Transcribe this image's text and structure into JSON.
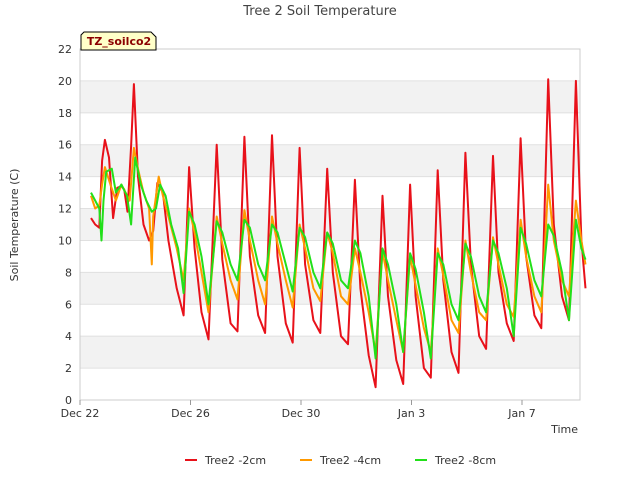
{
  "chart_data": {
    "type": "line",
    "title": "Tree 2 Soil Temperature",
    "xlabel": "Time",
    "ylabel": "Soil Temperature (C)",
    "station_label": "TZ_soilco2",
    "x_tick_labels": [
      "Dec 22",
      "Dec 26",
      "Dec 30",
      "Jan 3",
      "Jan 7"
    ],
    "x_tick_days": [
      0,
      4,
      8,
      12,
      16
    ],
    "xlim_days": [
      0,
      18.1
    ],
    "ylim": [
      0,
      22
    ],
    "y_ticks": [
      0,
      2,
      4,
      6,
      8,
      10,
      12,
      14,
      16,
      18,
      20,
      22
    ],
    "grid": "horizontal bands",
    "legend_position": "bottom",
    "series": [
      {
        "name": "Tree2 -2cm",
        "color": "#e8111a",
        "points": [
          [
            0.4,
            11.4
          ],
          [
            0.55,
            11.0
          ],
          [
            0.7,
            10.8
          ],
          [
            0.8,
            15.0
          ],
          [
            0.9,
            16.3
          ],
          [
            1.05,
            15.2
          ],
          [
            1.2,
            11.4
          ],
          [
            1.35,
            13.3
          ],
          [
            1.5,
            13.4
          ],
          [
            1.6,
            13.2
          ],
          [
            1.72,
            11.8
          ],
          [
            1.85,
            15.9
          ],
          [
            1.95,
            19.8
          ],
          [
            2.1,
            14.0
          ],
          [
            2.3,
            11.0
          ],
          [
            2.5,
            10.0
          ],
          [
            2.65,
            10.6
          ],
          [
            2.8,
            13.6
          ],
          [
            3.0,
            13.0
          ],
          [
            3.2,
            10.0
          ],
          [
            3.5,
            7.0
          ],
          [
            3.75,
            5.3
          ],
          [
            3.95,
            14.6
          ],
          [
            4.15,
            9.5
          ],
          [
            4.4,
            5.5
          ],
          [
            4.65,
            3.8
          ],
          [
            4.95,
            16.0
          ],
          [
            5.15,
            8.8
          ],
          [
            5.45,
            4.8
          ],
          [
            5.7,
            4.3
          ],
          [
            5.95,
            16.5
          ],
          [
            6.15,
            9.0
          ],
          [
            6.45,
            5.3
          ],
          [
            6.7,
            4.2
          ],
          [
            6.95,
            16.6
          ],
          [
            7.15,
            9.0
          ],
          [
            7.45,
            4.8
          ],
          [
            7.7,
            3.6
          ],
          [
            7.95,
            15.8
          ],
          [
            8.15,
            8.5
          ],
          [
            8.45,
            5.0
          ],
          [
            8.7,
            4.2
          ],
          [
            8.95,
            14.5
          ],
          [
            9.15,
            8.0
          ],
          [
            9.45,
            4.0
          ],
          [
            9.7,
            3.5
          ],
          [
            9.95,
            13.8
          ],
          [
            10.15,
            7.0
          ],
          [
            10.45,
            2.8
          ],
          [
            10.7,
            0.8
          ],
          [
            10.95,
            12.8
          ],
          [
            11.15,
            6.5
          ],
          [
            11.45,
            2.5
          ],
          [
            11.7,
            1.0
          ],
          [
            11.95,
            13.5
          ],
          [
            12.15,
            6.5
          ],
          [
            12.45,
            2.0
          ],
          [
            12.7,
            1.4
          ],
          [
            12.95,
            14.4
          ],
          [
            13.15,
            7.5
          ],
          [
            13.45,
            3.0
          ],
          [
            13.7,
            1.7
          ],
          [
            13.95,
            15.5
          ],
          [
            14.15,
            8.5
          ],
          [
            14.45,
            4.0
          ],
          [
            14.7,
            3.2
          ],
          [
            14.95,
            15.3
          ],
          [
            15.15,
            8.0
          ],
          [
            15.45,
            4.8
          ],
          [
            15.7,
            3.7
          ],
          [
            15.95,
            16.4
          ],
          [
            16.15,
            9.0
          ],
          [
            16.45,
            5.3
          ],
          [
            16.7,
            4.5
          ],
          [
            16.95,
            20.1
          ],
          [
            17.15,
            11.0
          ],
          [
            17.45,
            6.5
          ],
          [
            17.7,
            5.0
          ],
          [
            17.95,
            20.0
          ],
          [
            18.15,
            10.0
          ],
          [
            18.3,
            7.0
          ]
        ]
      },
      {
        "name": "Tree2 -4cm",
        "color": "#ff9900",
        "points": [
          [
            0.4,
            12.8
          ],
          [
            0.55,
            12.0
          ],
          [
            0.7,
            12.2
          ],
          [
            0.8,
            13.5
          ],
          [
            0.9,
            14.6
          ],
          [
            1.1,
            13.5
          ],
          [
            1.3,
            12.5
          ],
          [
            1.5,
            13.5
          ],
          [
            1.65,
            13.0
          ],
          [
            1.8,
            12.5
          ],
          [
            1.95,
            15.8
          ],
          [
            2.1,
            14.5
          ],
          [
            2.3,
            13.0
          ],
          [
            2.5,
            12.0
          ],
          [
            2.6,
            8.5
          ],
          [
            2.65,
            11.5
          ],
          [
            2.85,
            14.0
          ],
          [
            3.0,
            12.8
          ],
          [
            3.2,
            11.5
          ],
          [
            3.5,
            9.5
          ],
          [
            3.75,
            7.5
          ],
          [
            3.95,
            12.0
          ],
          [
            4.15,
            10.5
          ],
          [
            4.4,
            8.0
          ],
          [
            4.65,
            5.5
          ],
          [
            4.95,
            11.5
          ],
          [
            5.15,
            9.8
          ],
          [
            5.45,
            7.5
          ],
          [
            5.7,
            6.3
          ],
          [
            5.95,
            11.9
          ],
          [
            6.15,
            10.0
          ],
          [
            6.45,
            7.5
          ],
          [
            6.7,
            6.0
          ],
          [
            6.95,
            11.5
          ],
          [
            7.15,
            9.8
          ],
          [
            7.45,
            7.5
          ],
          [
            7.7,
            5.8
          ],
          [
            7.95,
            11.0
          ],
          [
            8.15,
            9.5
          ],
          [
            8.45,
            7.0
          ],
          [
            8.7,
            6.2
          ],
          [
            8.95,
            10.5
          ],
          [
            9.15,
            9.2
          ],
          [
            9.45,
            6.5
          ],
          [
            9.7,
            6.0
          ],
          [
            9.95,
            9.5
          ],
          [
            10.15,
            8.0
          ],
          [
            10.45,
            5.5
          ],
          [
            10.7,
            3.0
          ],
          [
            10.95,
            9.3
          ],
          [
            11.15,
            7.5
          ],
          [
            11.45,
            5.0
          ],
          [
            11.7,
            3.0
          ],
          [
            11.95,
            9.0
          ],
          [
            12.15,
            7.2
          ],
          [
            12.45,
            4.5
          ],
          [
            12.7,
            3.0
          ],
          [
            12.95,
            9.5
          ],
          [
            13.15,
            7.8
          ],
          [
            13.45,
            5.0
          ],
          [
            13.7,
            4.2
          ],
          [
            13.95,
            10.0
          ],
          [
            14.15,
            8.0
          ],
          [
            14.45,
            5.5
          ],
          [
            14.7,
            5.0
          ],
          [
            14.95,
            10.2
          ],
          [
            15.15,
            8.5
          ],
          [
            15.45,
            6.0
          ],
          [
            15.7,
            5.2
          ],
          [
            15.95,
            11.3
          ],
          [
            16.15,
            9.0
          ],
          [
            16.45,
            6.5
          ],
          [
            16.7,
            5.5
          ],
          [
            16.95,
            13.5
          ],
          [
            17.15,
            10.0
          ],
          [
            17.45,
            7.5
          ],
          [
            17.7,
            6.5
          ],
          [
            17.95,
            12.5
          ],
          [
            18.15,
            10.0
          ],
          [
            18.3,
            8.5
          ]
        ]
      },
      {
        "name": "Tree2 -8cm",
        "color": "#22e01a",
        "points": [
          [
            0.4,
            13.0
          ],
          [
            0.55,
            12.5
          ],
          [
            0.7,
            12.0
          ],
          [
            0.78,
            10.0
          ],
          [
            0.85,
            12.5
          ],
          [
            0.95,
            14.3
          ],
          [
            1.15,
            14.5
          ],
          [
            1.3,
            13.0
          ],
          [
            1.5,
            13.5
          ],
          [
            1.7,
            12.8
          ],
          [
            1.85,
            11.0
          ],
          [
            2.0,
            15.2
          ],
          [
            2.2,
            13.5
          ],
          [
            2.4,
            12.5
          ],
          [
            2.6,
            11.8
          ],
          [
            2.75,
            12.0
          ],
          [
            2.9,
            13.5
          ],
          [
            3.1,
            12.8
          ],
          [
            3.3,
            11.0
          ],
          [
            3.55,
            9.5
          ],
          [
            3.75,
            6.7
          ],
          [
            3.95,
            11.8
          ],
          [
            4.15,
            11.0
          ],
          [
            4.4,
            9.0
          ],
          [
            4.65,
            6.0
          ],
          [
            4.95,
            11.2
          ],
          [
            5.15,
            10.5
          ],
          [
            5.45,
            8.5
          ],
          [
            5.7,
            7.5
          ],
          [
            5.95,
            11.3
          ],
          [
            6.15,
            10.8
          ],
          [
            6.45,
            8.5
          ],
          [
            6.7,
            7.5
          ],
          [
            6.95,
            11.0
          ],
          [
            7.15,
            10.5
          ],
          [
            7.45,
            8.5
          ],
          [
            7.7,
            6.8
          ],
          [
            7.95,
            10.8
          ],
          [
            8.15,
            10.2
          ],
          [
            8.45,
            8.0
          ],
          [
            8.7,
            7.0
          ],
          [
            8.95,
            10.5
          ],
          [
            9.15,
            9.8
          ],
          [
            9.45,
            7.5
          ],
          [
            9.7,
            7.0
          ],
          [
            9.95,
            10.0
          ],
          [
            10.15,
            9.2
          ],
          [
            10.45,
            6.5
          ],
          [
            10.7,
            2.6
          ],
          [
            10.95,
            9.5
          ],
          [
            11.15,
            8.5
          ],
          [
            11.45,
            6.0
          ],
          [
            11.7,
            3.0
          ],
          [
            11.95,
            9.2
          ],
          [
            12.15,
            8.2
          ],
          [
            12.45,
            5.5
          ],
          [
            12.7,
            2.6
          ],
          [
            12.95,
            9.2
          ],
          [
            13.15,
            8.5
          ],
          [
            13.45,
            6.0
          ],
          [
            13.7,
            5.0
          ],
          [
            13.95,
            9.8
          ],
          [
            14.15,
            9.0
          ],
          [
            14.45,
            6.5
          ],
          [
            14.7,
            5.5
          ],
          [
            14.95,
            10.0
          ],
          [
            15.15,
            9.2
          ],
          [
            15.45,
            7.0
          ],
          [
            15.7,
            4.0
          ],
          [
            15.95,
            10.8
          ],
          [
            16.15,
            9.8
          ],
          [
            16.45,
            7.5
          ],
          [
            16.7,
            6.5
          ],
          [
            16.95,
            11.0
          ],
          [
            17.15,
            10.3
          ],
          [
            17.45,
            8.0
          ],
          [
            17.7,
            5.0
          ],
          [
            17.95,
            11.3
          ],
          [
            18.15,
            9.5
          ],
          [
            18.3,
            8.8
          ]
        ]
      }
    ]
  }
}
